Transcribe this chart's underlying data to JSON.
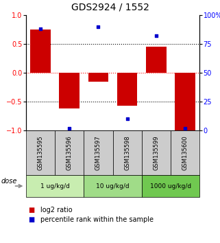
{
  "title": "GDS2924 / 1552",
  "samples": [
    "GSM135595",
    "GSM135596",
    "GSM135597",
    "GSM135598",
    "GSM135599",
    "GSM135600"
  ],
  "log2_ratio": [
    0.75,
    -0.62,
    -0.15,
    -0.57,
    0.45,
    -1.0
  ],
  "percentile": [
    88,
    2,
    90,
    10,
    82,
    2
  ],
  "groups": [
    {
      "label": "1 ug/kg/d",
      "samples": [
        0,
        1
      ],
      "color": "#c8edb0"
    },
    {
      "label": "10 ug/kg/d",
      "samples": [
        2,
        3
      ],
      "color": "#a0dc88"
    },
    {
      "label": "1000 ug/kg/d",
      "samples": [
        4,
        5
      ],
      "color": "#70c850"
    }
  ],
  "bar_color": "#cc0000",
  "marker_color": "#0000cc",
  "ylim_left": [
    -1.0,
    1.0
  ],
  "ylim_right": [
    0,
    100
  ],
  "yticks_left": [
    -1,
    -0.5,
    0,
    0.5,
    1
  ],
  "yticks_right": [
    0,
    25,
    50,
    75,
    100
  ],
  "ytick_labels_right": [
    "0",
    "25",
    "50",
    "75",
    "100%"
  ],
  "dotted_lines_black": [
    -0.5,
    0.5
  ],
  "dotted_line_red": 0,
  "legend_items": [
    {
      "color": "#cc0000",
      "label": "log2 ratio"
    },
    {
      "color": "#0000cc",
      "label": "percentile rank within the sample"
    }
  ],
  "dose_label": "dose",
  "bar_width": 0.7,
  "sample_box_color": "#cccccc",
  "title_fontsize": 10,
  "tick_fontsize": 7,
  "label_fontsize": 7
}
